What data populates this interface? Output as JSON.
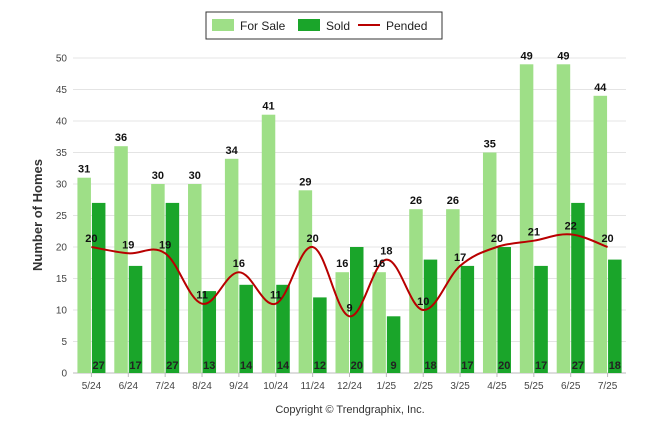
{
  "chart_data": {
    "type": "bar",
    "title": "",
    "xlabel": "",
    "ylabel": "Number of Homes",
    "ylim": [
      0,
      50
    ],
    "yticks": [
      0,
      5,
      10,
      15,
      20,
      25,
      30,
      35,
      40,
      45,
      50
    ],
    "grid": true,
    "legend_position": "top-center",
    "categories": [
      "5/24",
      "6/24",
      "7/24",
      "8/24",
      "9/24",
      "10/24",
      "11/24",
      "12/24",
      "1/25",
      "2/25",
      "3/25",
      "4/25",
      "5/25",
      "6/25",
      "7/25"
    ],
    "series": [
      {
        "name": "For Sale",
        "kind": "bar",
        "color": "#9edf87",
        "values": [
          31,
          36,
          30,
          30,
          34,
          41,
          29,
          16,
          16,
          26,
          26,
          35,
          49,
          49,
          44
        ]
      },
      {
        "name": "Sold",
        "kind": "bar",
        "color": "#1aa52a",
        "values": [
          27,
          17,
          27,
          13,
          14,
          14,
          12,
          20,
          9,
          18,
          17,
          20,
          17,
          27,
          18
        ]
      },
      {
        "name": "Pended",
        "kind": "line",
        "color": "#b80000",
        "values": [
          20,
          19,
          19,
          11,
          16,
          11,
          20,
          9,
          18,
          10,
          17,
          20,
          21,
          22,
          20
        ]
      }
    ],
    "credit": "Copyright © Trendgraphix, Inc."
  }
}
